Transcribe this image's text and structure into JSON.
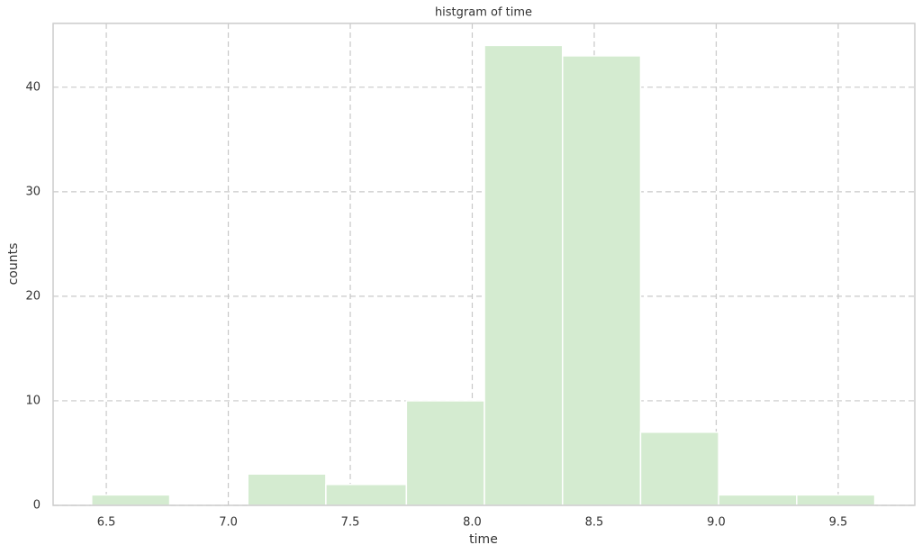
{
  "chart_data": {
    "type": "histogram",
    "title": "histgram of time",
    "x_label": "time",
    "y_label": "counts",
    "bins": [
      6.44,
      6.76,
      7.08,
      7.4,
      7.73,
      8.05,
      8.37,
      8.69,
      9.01,
      9.33,
      9.65
    ],
    "counts": [
      1,
      0,
      3,
      2,
      10,
      44,
      43,
      7,
      1,
      1
    ],
    "color": "#d4ebd0",
    "xlim": [
      6.282,
      9.814
    ],
    "xticks": [
      6.5,
      {
        "value": 7.0,
        "label": "7.0"
      },
      7.5,
      {
        "value": 8.0,
        "label": "8.0"
      },
      8.5,
      {
        "value": 9.0,
        "label": "9.0"
      },
      9.5
    ],
    "ylim": [
      0,
      46.1
    ],
    "yticks": [
      0,
      10,
      20,
      30,
      40
    ],
    "grid": true
  }
}
